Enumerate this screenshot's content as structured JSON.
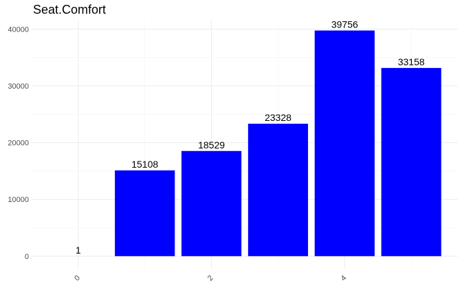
{
  "chart_data": {
    "type": "bar",
    "title": "Seat.Comfort",
    "xlabel": "",
    "ylabel": "",
    "x": [
      0,
      1,
      2,
      3,
      4,
      5
    ],
    "values": [
      1,
      15108,
      18529,
      23328,
      39756,
      33158
    ],
    "data_labels": [
      "1",
      "15108",
      "18529",
      "23328",
      "39756",
      "33158"
    ],
    "x_ticks": [
      0,
      2,
      4
    ],
    "x_tick_labels": [
      "0",
      "2",
      "4"
    ],
    "y_ticks": [
      0,
      10000,
      20000,
      30000,
      40000
    ],
    "y_tick_labels": [
      "0",
      "10000",
      "20000",
      "30000",
      "40000"
    ],
    "xlim": [
      -0.7,
      5.7
    ],
    "ylim": [
      -2200,
      41500
    ],
    "bar_color": "#0000ff",
    "grid": true,
    "legend": "none"
  }
}
